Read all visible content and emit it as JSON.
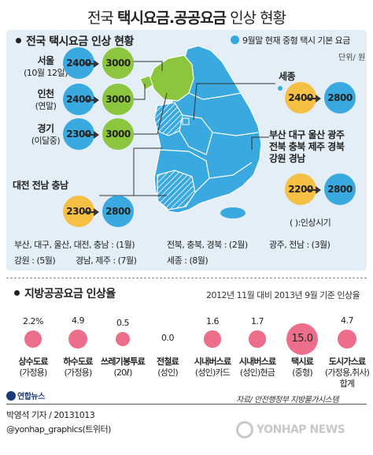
{
  "title": {
    "normal": "전국",
    "bold": "택시요금.공공요금",
    "rest": "인상 현황"
  },
  "fare_section": {
    "title": "전국 택시요금 인상 현황",
    "legend": "9월말 현재 중형 택시 기본 요금",
    "unit": "단위/ 원",
    "regions": [
      {
        "name": "서울",
        "sub": "(10월 12일)",
        "from": "2400",
        "to": "3000"
      },
      {
        "name": "인천",
        "sub": "(연말)",
        "from": "2400",
        "to": "3000"
      },
      {
        "name": "경기",
        "sub": "(이달중)",
        "from": "2300",
        "to": "3000"
      },
      {
        "name": "세종",
        "sub": "",
        "from": "2400",
        "to": "2800"
      },
      {
        "name": "부산 대구 울산 광주",
        "name2": "전북 충북 제주 경북",
        "name3": "강원 경남",
        "from": "2200",
        "to": "2800"
      },
      {
        "name": "대전 전남 충남",
        "sub": "",
        "from": "2300",
        "to": "2800"
      }
    ],
    "timing_note": "( ):인상시기",
    "info_lines": [
      [
        "부산, 대구, 울산, 대전, 충남 : (1월)",
        "전북, 충북, 경북 : (2월)",
        "광주, 전남 : (3월)"
      ],
      [
        "강원 : (5월)",
        "경남, 제주 : (7월)",
        "세종 : (8월)"
      ]
    ],
    "colors": {
      "blue": "#3aa9e0",
      "green": "#8cc63e",
      "orange": "#f6c044",
      "map_base": "#3aa9e0",
      "map_green": "#8cc63e"
    }
  },
  "rate_section": {
    "title": "지방공공요금 인상율",
    "note": "2012년 11월 대비 2013년 9월 기준 인상율",
    "items": [
      {
        "value": 2.2,
        "label": "2.2%",
        "name": "상수도료",
        "sub": "(가정용)"
      },
      {
        "value": 4.9,
        "label": "4.9",
        "name": "하수도료",
        "sub": "(가정용)"
      },
      {
        "value": 0.5,
        "label": "0.5",
        "name": "쓰레기봉투료",
        "sub": "(20ℓ)"
      },
      {
        "value": 0.0,
        "label": "0.0",
        "name": "전철료",
        "sub": "(성인)"
      },
      {
        "value": 1.6,
        "label": "1.6",
        "name": "시내버스료",
        "sub": "(성인)카드"
      },
      {
        "value": 1.7,
        "label": "1.7",
        "name": "시내버스료",
        "sub": "(성인)현금"
      },
      {
        "value": 15.0,
        "label": "15.0",
        "name": "택시료",
        "sub": "(중형)"
      },
      {
        "value": 4.7,
        "label": "4.7",
        "name": "도시가스료",
        "sub": "(가정용,취사)",
        "sub2": "합계"
      }
    ],
    "dot_color": "#ec6e8b"
  },
  "footer": {
    "logo": "연합뉴스",
    "source": "자료/ 안전행정부 지방물가시스템",
    "byline1": "박영석 기자 / 20131013",
    "byline2": "@yonhap_graphics(트위터)",
    "watermark": "YONHAP NEWS"
  }
}
